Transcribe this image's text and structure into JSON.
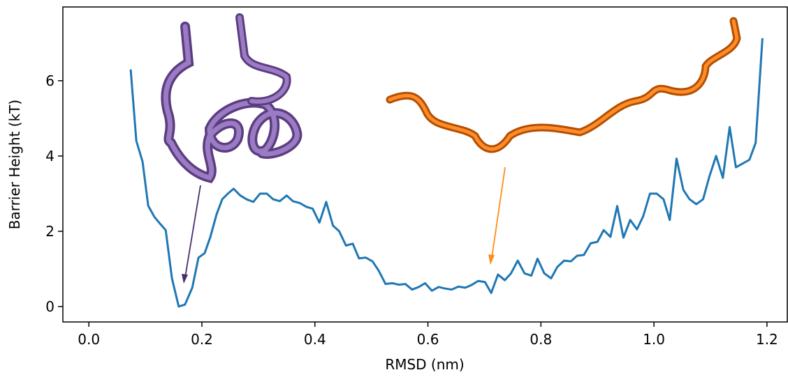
{
  "chart_data": {
    "type": "line",
    "xlabel": "RMSD (nm)",
    "ylabel": "Barrier Height (kT)",
    "xlim": [
      -0.046,
      1.236
    ],
    "ylim": [
      -0.41,
      7.96
    ],
    "xticks": [
      {
        "value": 0.0,
        "label": "0.0"
      },
      0.2,
      0.4,
      0.6,
      0.8,
      {
        "value": 1.0,
        "label": "1.0"
      },
      1.2
    ],
    "yticks": [
      0,
      2,
      4,
      6
    ],
    "grid": false,
    "series": [
      {
        "color": "#1f77b4",
        "x": [
          0.074,
          0.084,
          0.095,
          0.105,
          0.116,
          0.126,
          0.136,
          0.147,
          0.159,
          0.17,
          0.183,
          0.194,
          0.205,
          0.215,
          0.226,
          0.236,
          0.246,
          0.256,
          0.268,
          0.279,
          0.291,
          0.303,
          0.315,
          0.326,
          0.338,
          0.35,
          0.361,
          0.373,
          0.385,
          0.396,
          0.408,
          0.42,
          0.432,
          0.443,
          0.455,
          0.467,
          0.478,
          0.49,
          0.502,
          0.513,
          0.525,
          0.537,
          0.549,
          0.56,
          0.572,
          0.584,
          0.595,
          0.607,
          0.619,
          0.63,
          0.642,
          0.654,
          0.666,
          0.677,
          0.689,
          0.701,
          0.712,
          0.724,
          0.736,
          0.747,
          0.759,
          0.771,
          0.783,
          0.794,
          0.806,
          0.818,
          0.829,
          0.841,
          0.853,
          0.864,
          0.876,
          0.888,
          0.9,
          0.911,
          0.923,
          0.935,
          0.946,
          0.958,
          0.97,
          0.981,
          0.993,
          1.005,
          1.017,
          1.028,
          1.04,
          1.052,
          1.063,
          1.075,
          1.087,
          1.098,
          1.11,
          1.122,
          1.134,
          1.145,
          1.157,
          1.169,
          1.18,
          1.192
        ],
        "values": [
          6.3,
          4.4,
          3.85,
          2.68,
          2.38,
          2.2,
          2.03,
          0.75,
          0.0,
          0.05,
          0.5,
          1.3,
          1.42,
          1.85,
          2.45,
          2.85,
          3.0,
          3.13,
          2.95,
          2.85,
          2.78,
          3.0,
          3.0,
          2.85,
          2.8,
          2.95,
          2.8,
          2.75,
          2.65,
          2.6,
          2.23,
          2.78,
          2.15,
          2.0,
          1.62,
          1.67,
          1.28,
          1.3,
          1.2,
          0.95,
          0.6,
          0.62,
          0.58,
          0.6,
          0.45,
          0.52,
          0.62,
          0.42,
          0.52,
          0.48,
          0.45,
          0.53,
          0.5,
          0.57,
          0.68,
          0.65,
          0.36,
          0.85,
          0.7,
          0.88,
          1.22,
          0.88,
          0.82,
          1.27,
          0.88,
          0.75,
          1.05,
          1.22,
          1.2,
          1.35,
          1.37,
          1.68,
          1.72,
          2.03,
          1.85,
          2.67,
          1.83,
          2.3,
          2.05,
          2.4,
          3.0,
          3.0,
          2.85,
          2.3,
          3.93,
          3.1,
          2.85,
          2.72,
          2.85,
          3.45,
          4.0,
          3.42,
          4.77,
          3.7,
          3.8,
          3.9,
          4.35,
          7.13
        ]
      }
    ]
  }
}
